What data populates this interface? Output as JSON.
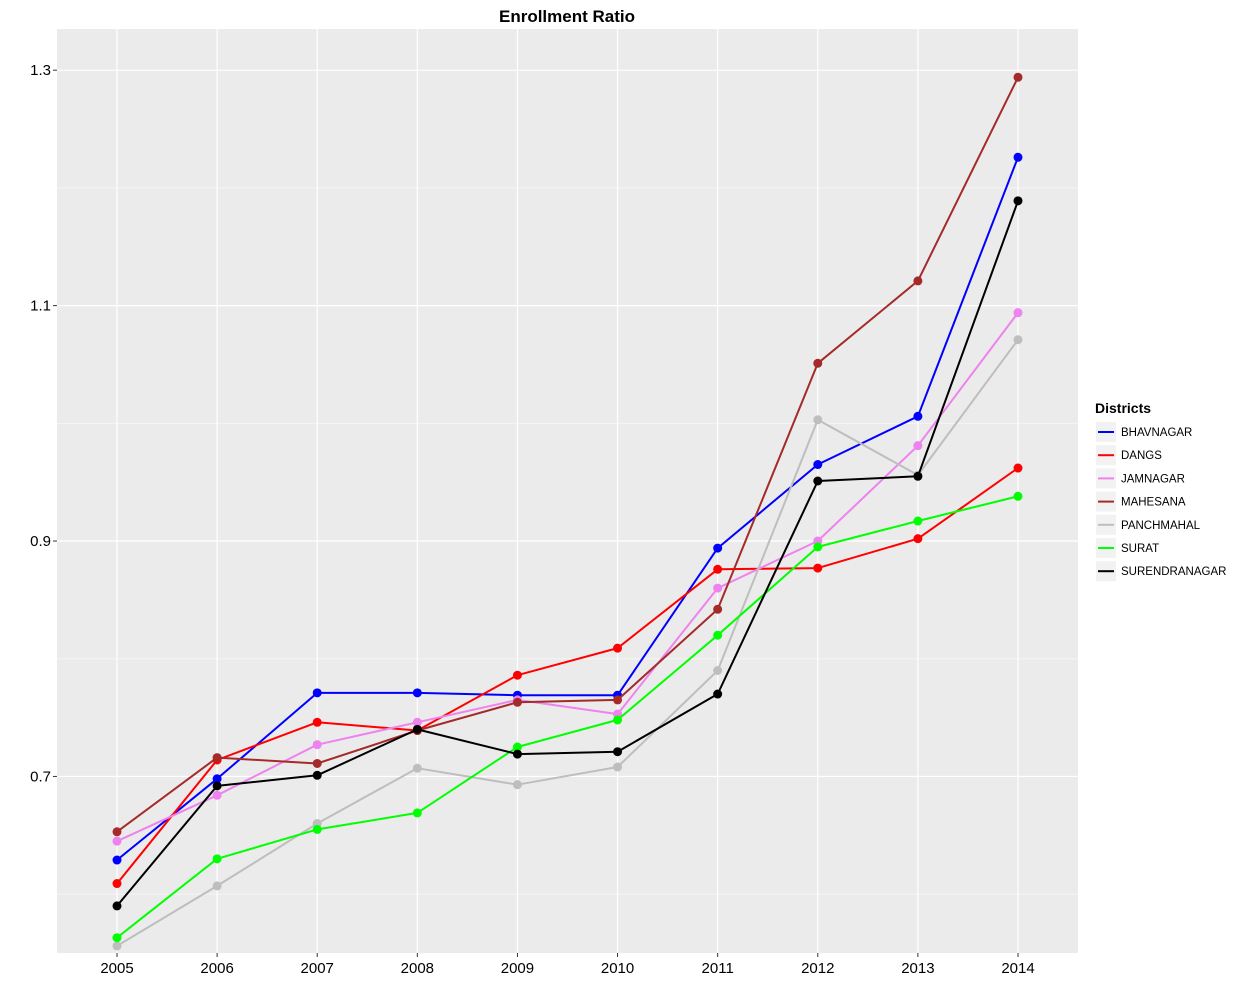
{
  "chart_data": {
    "type": "line",
    "title": "Enrollment Ratio",
    "xlabel": "",
    "ylabel": "",
    "x": [
      2005,
      2006,
      2007,
      2008,
      2009,
      2010,
      2011,
      2012,
      2013,
      2014
    ],
    "xticks": [
      "2005",
      "2006",
      "2007",
      "2008",
      "2009",
      "2010",
      "2011",
      "2012",
      "2013",
      "2014"
    ],
    "ylim": [
      0.55,
      1.335
    ],
    "yticks": [
      0.7,
      0.9,
      1.1,
      1.3
    ],
    "ytick_labels": [
      "0.7",
      "0.9",
      "1.1",
      "1.3"
    ],
    "grid": true,
    "legend": {
      "title": "Districts",
      "placement": "right"
    },
    "series": [
      {
        "name": "BHAVNAGAR",
        "color": "#0000ff",
        "values": [
          0.629,
          0.698,
          0.771,
          0.771,
          0.769,
          0.769,
          0.894,
          0.965,
          1.006,
          1.226
        ]
      },
      {
        "name": "DANGS",
        "color": "#ff0000",
        "values": [
          0.609,
          0.714,
          0.746,
          0.739,
          0.786,
          0.809,
          0.876,
          0.877,
          0.902,
          0.962
        ]
      },
      {
        "name": "JAMNAGAR",
        "color": "#ee82ee",
        "values": [
          0.645,
          0.684,
          0.727,
          0.746,
          0.765,
          0.753,
          0.86,
          0.9,
          0.981,
          1.094
        ]
      },
      {
        "name": "MAHESANA",
        "color": "#a52a2a",
        "values": [
          0.653,
          0.716,
          0.711,
          0.739,
          0.763,
          0.765,
          0.842,
          1.051,
          1.121,
          1.294
        ]
      },
      {
        "name": "PANCHMAHAL",
        "color": "#bebebe",
        "values": [
          0.556,
          0.607,
          0.66,
          0.707,
          0.693,
          0.708,
          0.79,
          1.003,
          0.956,
          1.071
        ]
      },
      {
        "name": "SURAT",
        "color": "#00ff00",
        "values": [
          0.563,
          0.63,
          0.655,
          0.669,
          0.725,
          0.748,
          0.82,
          0.895,
          0.917,
          0.938
        ]
      },
      {
        "name": "SURENDRANAGAR",
        "color": "#000000",
        "values": [
          0.59,
          0.692,
          0.701,
          0.74,
          0.719,
          0.721,
          0.77,
          0.951,
          0.955,
          1.189
        ]
      }
    ]
  }
}
